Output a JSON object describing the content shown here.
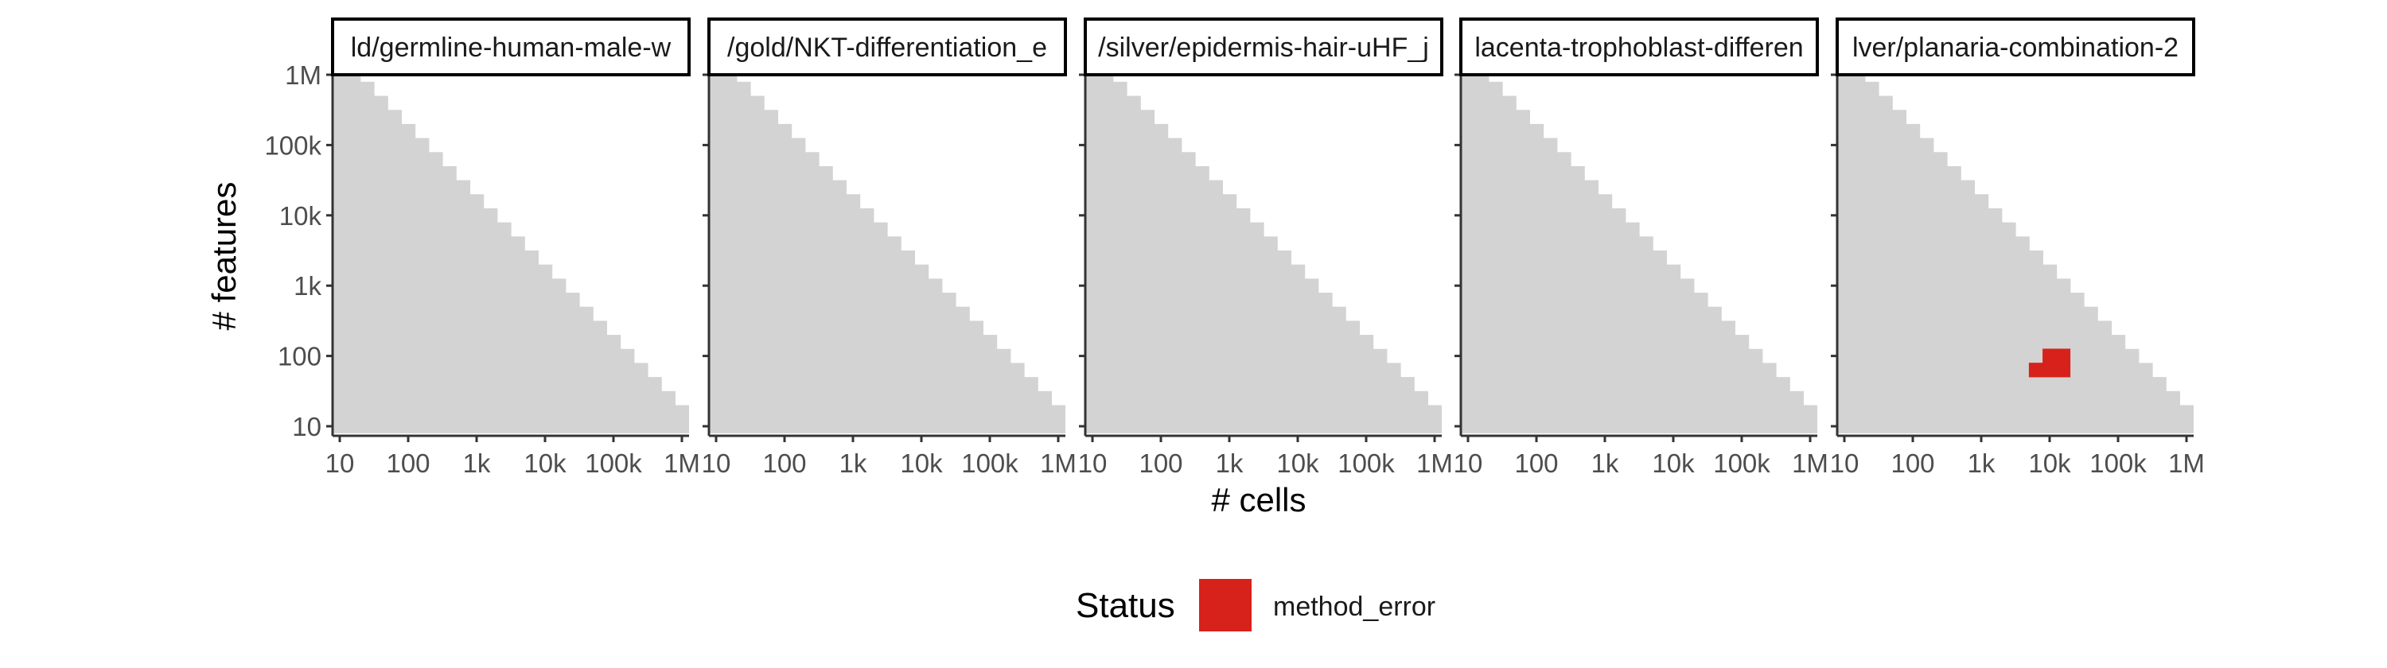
{
  "chart_data": {
    "type": "heatmap",
    "x_axis": {
      "title": "# cells",
      "scale": "log10",
      "range": [
        10,
        1000000
      ],
      "ticks": [
        {
          "value": 10,
          "label": "10"
        },
        {
          "value": 100,
          "label": "100"
        },
        {
          "value": 1000,
          "label": "1k"
        },
        {
          "value": 10000,
          "label": "10k"
        },
        {
          "value": 100000,
          "label": "100k"
        },
        {
          "value": 1000000,
          "label": "1M"
        }
      ]
    },
    "y_axis": {
      "title": "# features",
      "scale": "log10",
      "range": [
        10,
        1000000
      ],
      "ticks": [
        {
          "value": 10,
          "label": "10"
        },
        {
          "value": 100,
          "label": "100"
        },
        {
          "value": 1000,
          "label": "1k"
        },
        {
          "value": 10000,
          "label": "10k"
        },
        {
          "value": 100000,
          "label": "100k"
        },
        {
          "value": 1000000,
          "label": "1M"
        }
      ]
    },
    "grid_step_log10": 0.2,
    "coverage_limit_log10": 7.2,
    "background_status": "not evaluated",
    "panels": [
      {
        "label": "ld/germline-human-male-w",
        "cells": []
      },
      {
        "label": "/gold/NKT-differentiation_e",
        "cells": []
      },
      {
        "label": "/silver/epidermis-hair-uHF_j",
        "cells": []
      },
      {
        "label": "lacenta-trophoblast-differen",
        "cells": []
      },
      {
        "label": "lver/planaria-combination-2",
        "cells": [
          {
            "log_cells": 3.8,
            "log_features": 1.8,
            "status": "method_error"
          },
          {
            "log_cells": 4.0,
            "log_features": 1.8,
            "status": "method_error"
          },
          {
            "log_cells": 4.2,
            "log_features": 1.8,
            "status": "method_error"
          },
          {
            "log_cells": 4.0,
            "log_features": 2.0,
            "status": "method_error"
          },
          {
            "log_cells": 4.2,
            "log_features": 2.0,
            "status": "method_error"
          }
        ]
      }
    ],
    "legend": {
      "title": "Status",
      "position": "bottom",
      "entries": [
        {
          "label": "method_error",
          "color": "#d7211b"
        }
      ]
    },
    "colors": {
      "background_region": "#d3d3d3",
      "method_error": "#d7211b",
      "axis_line": "#333333",
      "tick_text": "#4d4d4d"
    }
  }
}
